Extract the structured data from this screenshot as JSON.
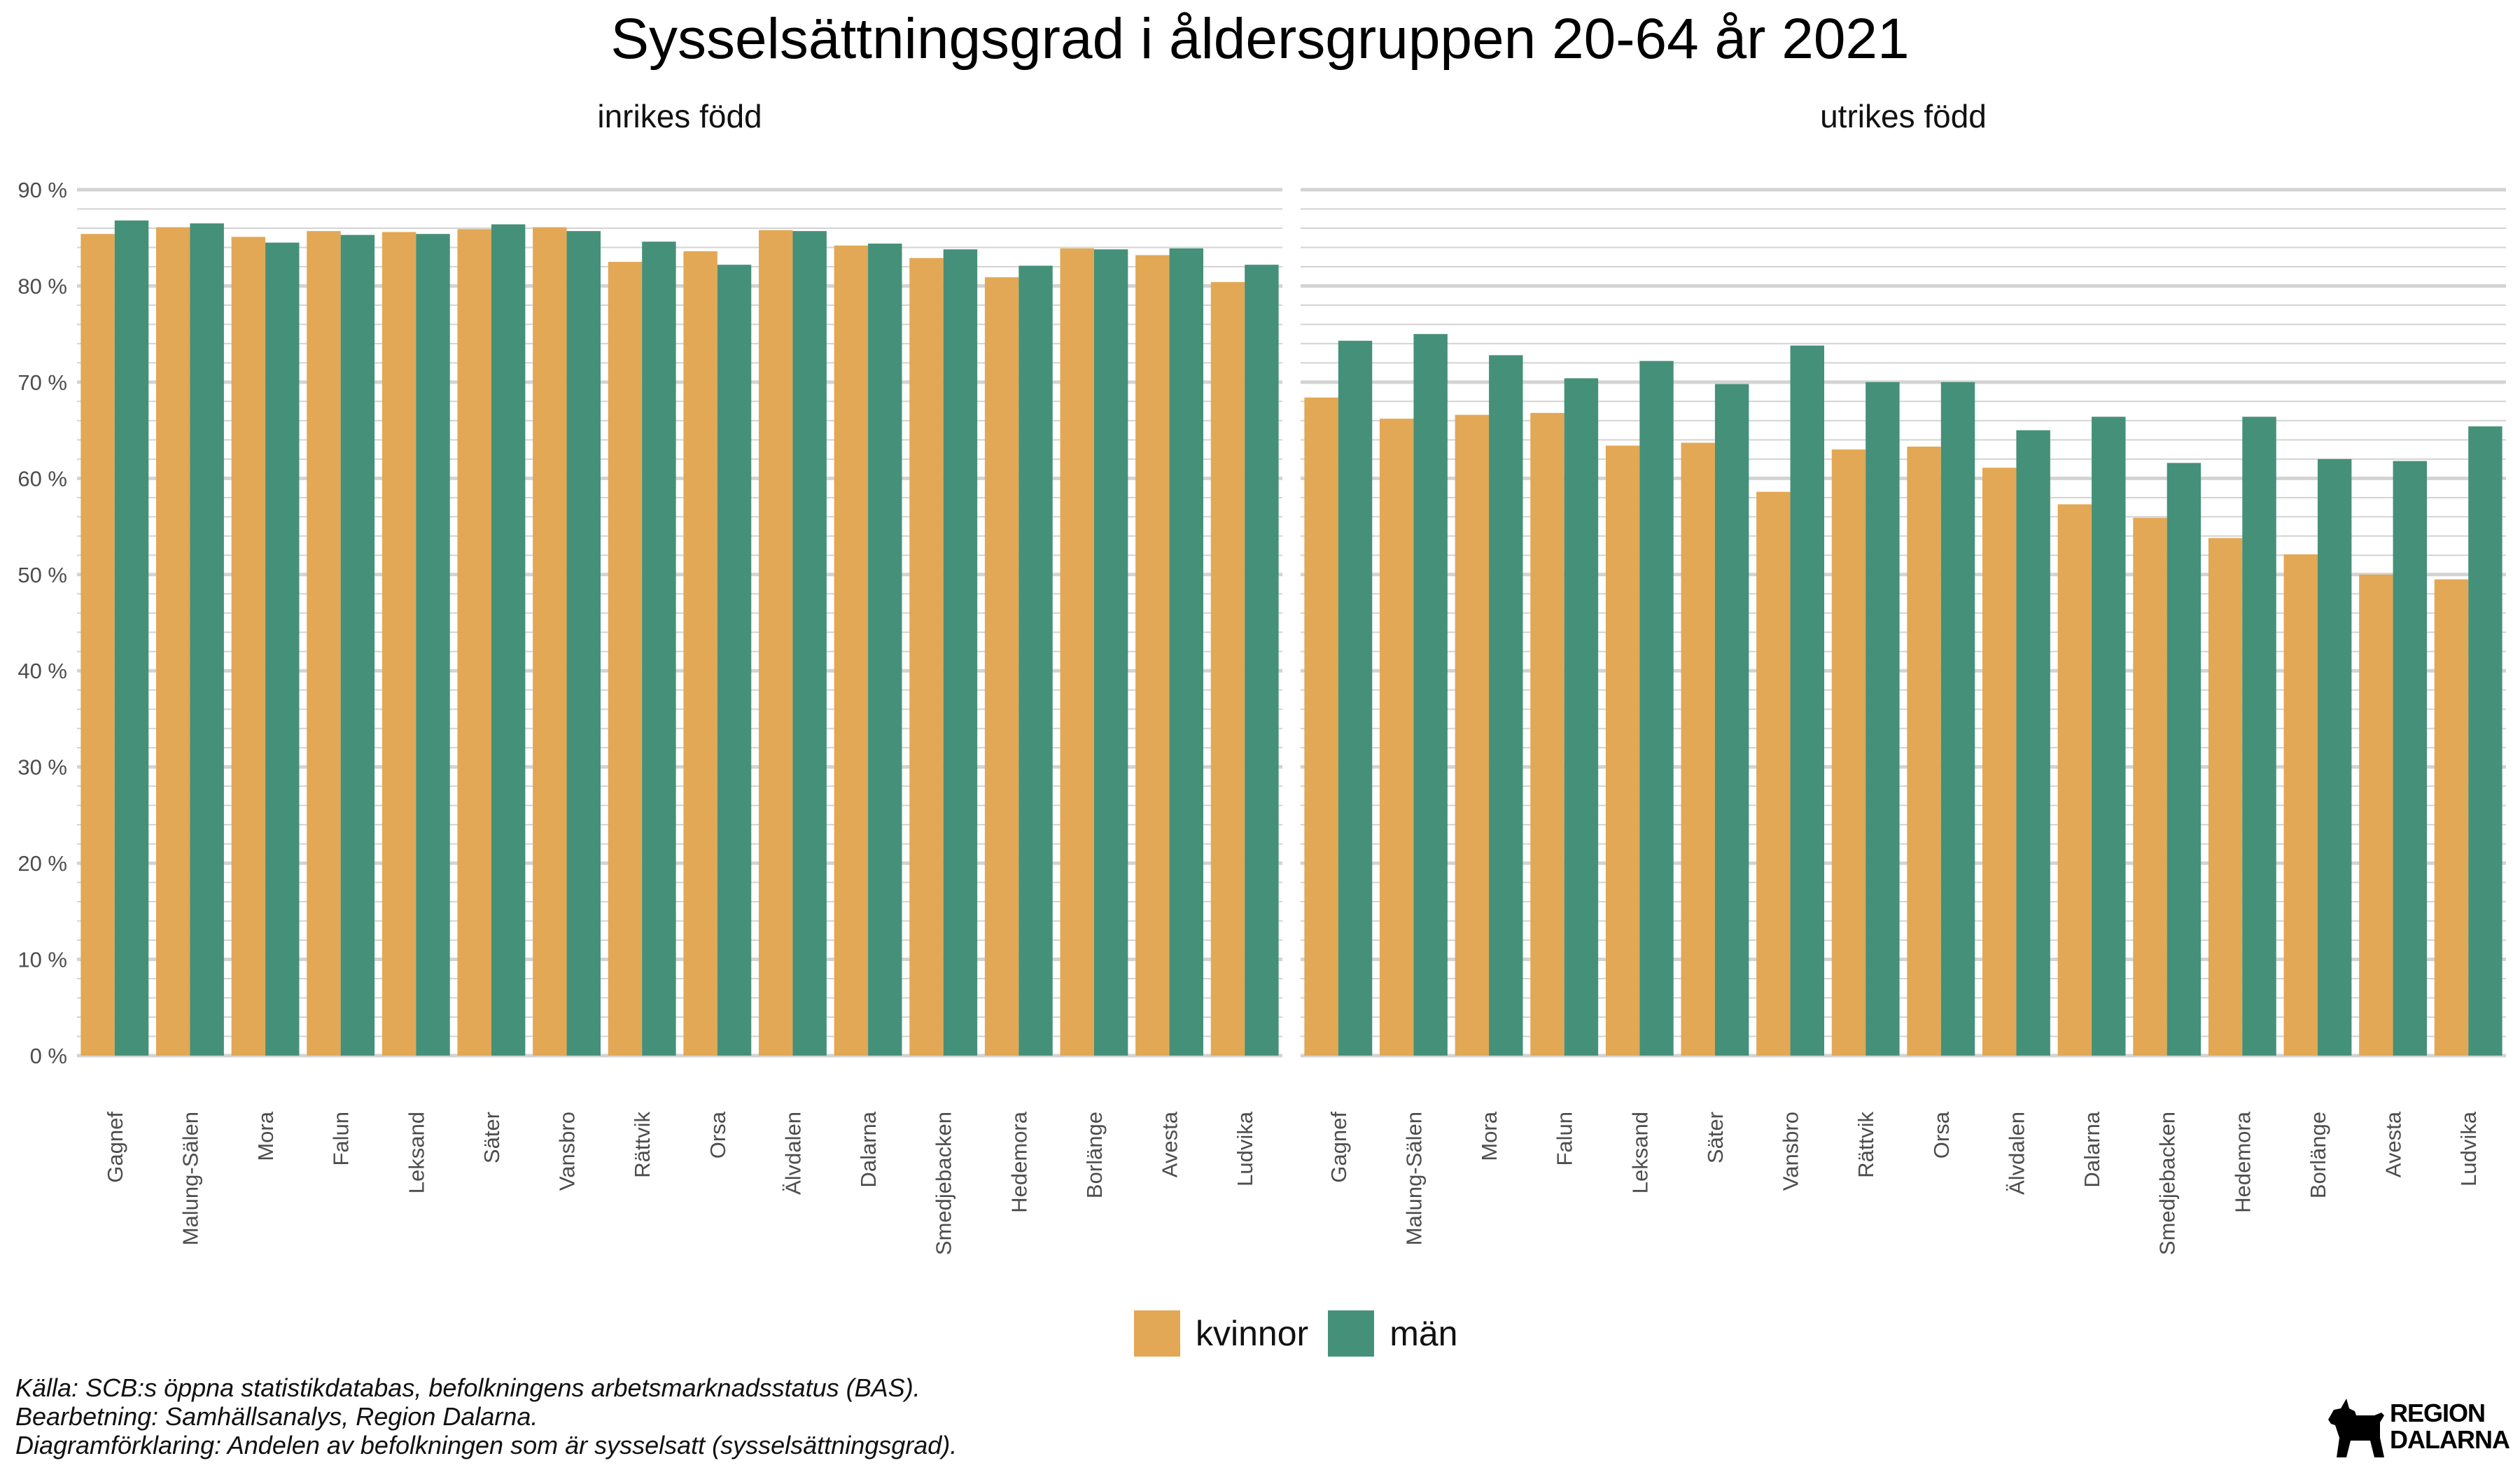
{
  "title": "Sysselsättningsgrad i åldersgruppen 20-64 år 2021",
  "colors": {
    "kvinnor": "#E2A855",
    "män": "#459079",
    "grid": "#D3D3D3"
  },
  "legend": {
    "kvinnor": "kvinnor",
    "män": "män"
  },
  "caption": [
    "Källa: SCB:s öppna statistikdatabas, befolkningens arbetsmarknadsstatus (BAS).",
    "Bearbetning: Samhällsanalys, Region Dalarna.",
    "Diagramförklaring: Andelen av befolkningen som är sysselsatt (sysselsättningsgrad)."
  ],
  "logo": {
    "line1": "REGION",
    "line2": "DALARNA",
    "icon": "dala-horse-icon"
  },
  "chart_data": [
    {
      "type": "bar",
      "panel_title": "inrikes född",
      "categories": [
        "Gagnef",
        "Malung-Sälen",
        "Mora",
        "Falun",
        "Leksand",
        "Säter",
        "Vansbro",
        "Rättvik",
        "Orsa",
        "Älvdalen",
        "Dalarna",
        "Smedjebacken",
        "Hedemora",
        "Borlänge",
        "Avesta",
        "Ludvika"
      ],
      "series": [
        {
          "name": "kvinnor",
          "values": [
            85.4,
            86.1,
            85.1,
            85.7,
            85.6,
            85.9,
            86.1,
            82.5,
            83.6,
            85.8,
            84.2,
            82.9,
            80.9,
            83.9,
            83.2,
            80.4
          ]
        },
        {
          "name": "män",
          "values": [
            86.8,
            86.5,
            84.5,
            85.3,
            85.4,
            86.4,
            85.7,
            84.6,
            82.2,
            85.7,
            84.4,
            83.8,
            82.1,
            83.8,
            83.9,
            82.2
          ]
        }
      ],
      "ylim": [
        0,
        90
      ],
      "yticks": [
        "0 %",
        "10 %",
        "20 %",
        "30 %",
        "40 %",
        "50 %",
        "60 %",
        "70 %",
        "80 %",
        "90 %"
      ]
    },
    {
      "type": "bar",
      "panel_title": "utrikes född",
      "categories": [
        "Gagnef",
        "Malung-Sälen",
        "Mora",
        "Falun",
        "Leksand",
        "Säter",
        "Vansbro",
        "Rättvik",
        "Orsa",
        "Älvdalen",
        "Dalarna",
        "Smedjebacken",
        "Hedemora",
        "Borlänge",
        "Avesta",
        "Ludvika"
      ],
      "series": [
        {
          "name": "kvinnor",
          "values": [
            68.4,
            66.2,
            66.6,
            66.8,
            63.4,
            63.7,
            58.6,
            63.0,
            63.3,
            61.1,
            57.3,
            55.9,
            53.8,
            52.1,
            50.0,
            49.5
          ]
        },
        {
          "name": "män",
          "values": [
            74.3,
            75.0,
            72.8,
            70.4,
            72.2,
            69.8,
            73.8,
            70.0,
            70.0,
            65.0,
            66.4,
            61.6,
            66.4,
            62.0,
            61.8,
            65.4
          ]
        }
      ],
      "ylim": [
        0,
        90
      ],
      "yticks": [
        "0 %",
        "10 %",
        "20 %",
        "30 %",
        "40 %",
        "50 %",
        "60 %",
        "70 %",
        "80 %",
        "90 %"
      ]
    }
  ]
}
